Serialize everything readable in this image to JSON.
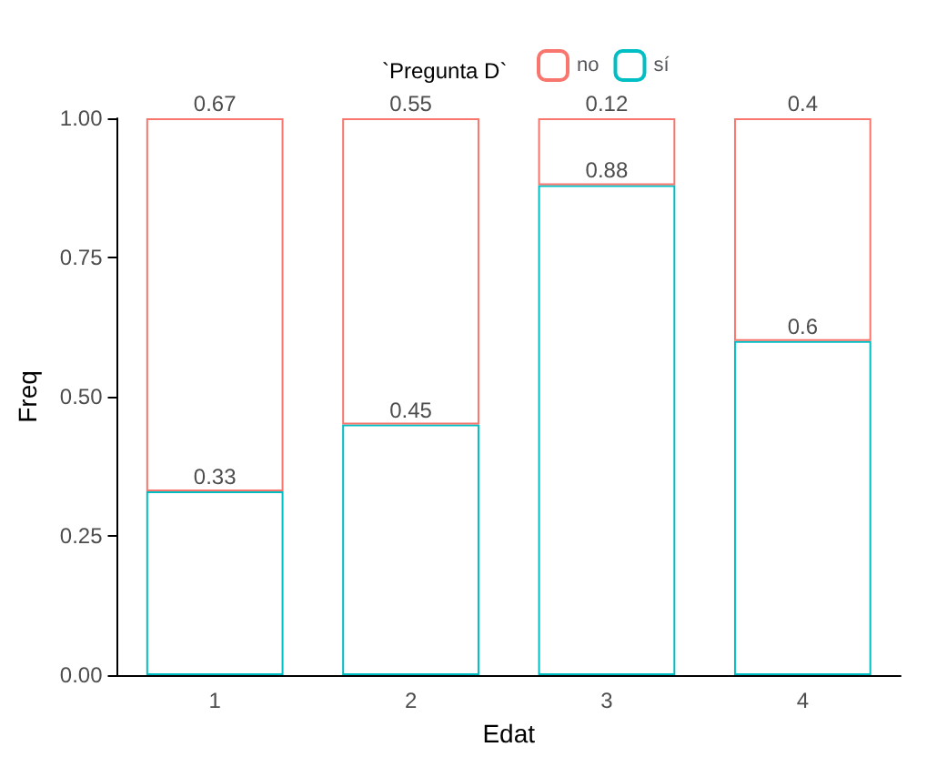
{
  "chart_data": {
    "type": "bar",
    "stacked": true,
    "xlabel": "Edat",
    "ylabel": "Freq",
    "legend_title": "`Pregunta D`",
    "legend": "top",
    "categories": [
      "1",
      "2",
      "3",
      "4"
    ],
    "series": [
      {
        "name": "sí",
        "color": "#00bfc4",
        "values": [
          0.33,
          0.45,
          0.88,
          0.6
        ]
      },
      {
        "name": "no",
        "color": "#f8766d",
        "values": [
          0.67,
          0.55,
          0.12,
          0.4
        ]
      }
    ],
    "ylim": [
      0,
      1
    ],
    "yticks": [
      {
        "value": 0,
        "label": "0.00"
      },
      {
        "value": 0.25,
        "label": "0.25"
      },
      {
        "value": 0.5,
        "label": "0.50"
      },
      {
        "value": 0.75,
        "label": "0.75"
      },
      {
        "value": 1,
        "label": "1.00"
      }
    ],
    "grid": false,
    "data_labels": true
  }
}
